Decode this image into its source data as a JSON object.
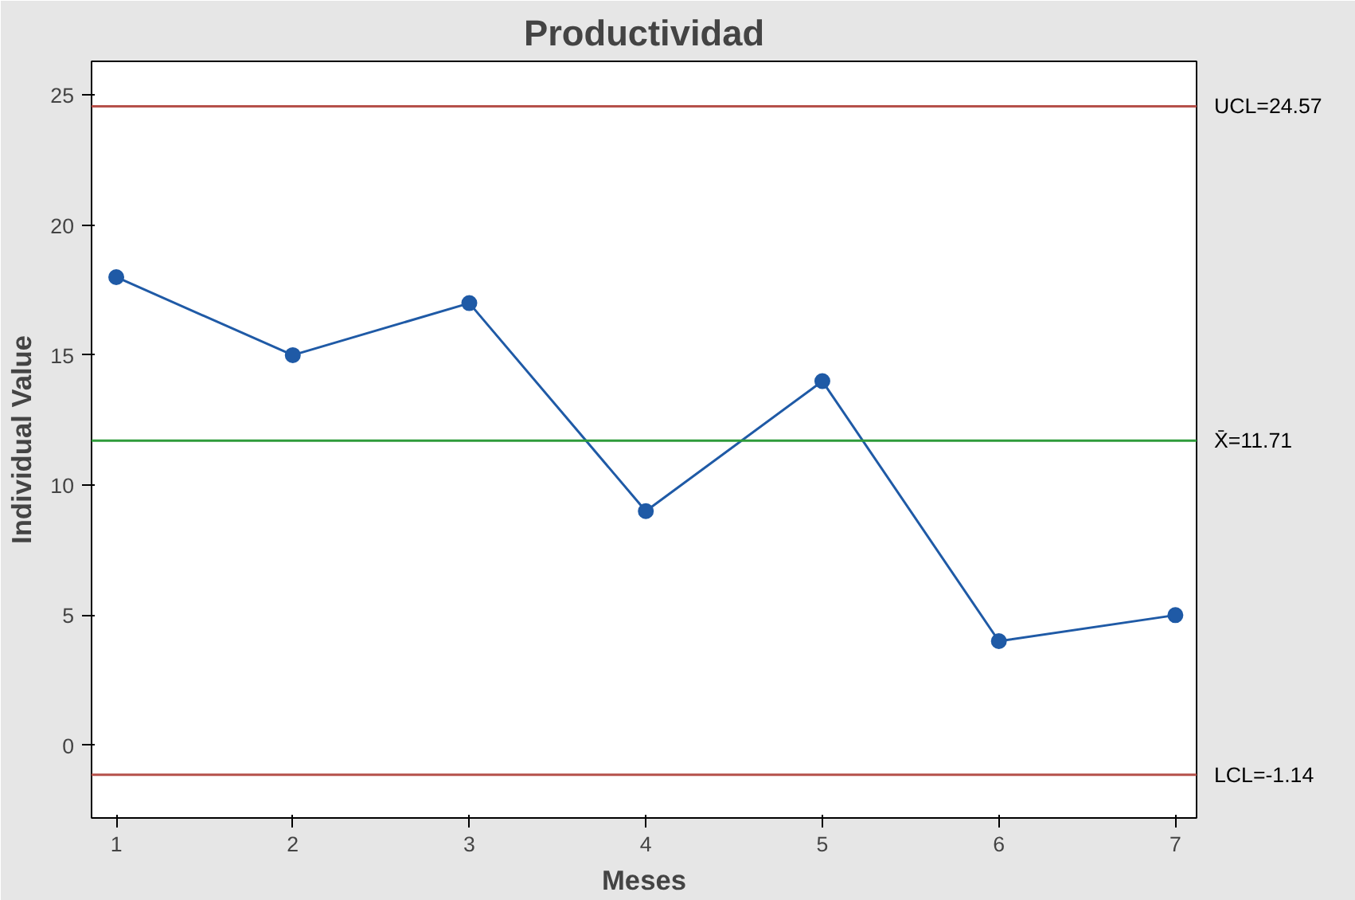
{
  "chart_data": {
    "type": "line",
    "title": "Productividad",
    "xlabel": "Meses",
    "ylabel": "Individual Value",
    "x": [
      1,
      2,
      3,
      4,
      5,
      6,
      7
    ],
    "series": [
      {
        "color": "#1f5aa6",
        "values": [
          18,
          15,
          17,
          9,
          14,
          4,
          5
        ]
      }
    ],
    "marker": "circle",
    "line_style": "solid",
    "grid": false,
    "xlim": [
      0.86,
      7.12
    ],
    "ylim": [
      -2.8,
      26.3
    ],
    "xticks": [
      1,
      2,
      3,
      4,
      5,
      6,
      7
    ],
    "yticks": [
      0,
      5,
      10,
      15,
      20,
      25
    ],
    "ref_lines": [
      {
        "axis": "y",
        "value": 24.57,
        "label": "UCL=24.57",
        "color": "#b5504a"
      },
      {
        "axis": "y",
        "value": 11.71,
        "label": "X̄=11.71",
        "color": "#2e9b3a"
      },
      {
        "axis": "y",
        "value": -1.14,
        "label": "LCL=-1.14",
        "color": "#b5504a"
      }
    ]
  }
}
